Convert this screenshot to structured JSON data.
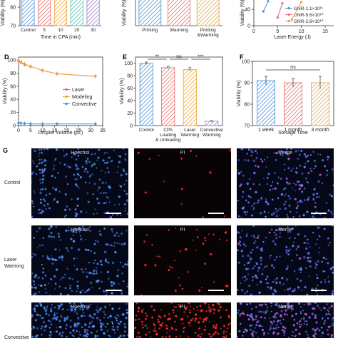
{
  "panels": {
    "d": "D",
    "e": "E",
    "f": "F",
    "g": "G"
  },
  "chart_data": [
    {
      "id": "top-a",
      "type": "bar",
      "ylabel": "Viability (%)",
      "xlabel": "Time in CPA (min)",
      "categories": [
        "Control",
        "5",
        "10",
        "20",
        "30"
      ],
      "yticks": [
        70,
        80
      ],
      "ylim": [
        70,
        86
      ],
      "values": [
        88,
        88,
        88,
        88,
        88
      ],
      "colors": [
        "#4a90d9",
        "#e76a6a",
        "#e6a640",
        "#5bc0a8",
        "#9c7ec6"
      ]
    },
    {
      "id": "top-b",
      "type": "bar",
      "ylabel": "Viability (%)",
      "xlabel": "",
      "categories": [
        "Printing",
        "Warming",
        "Printing &Warming"
      ],
      "values": [
        88,
        88,
        88
      ],
      "colors": [
        "#4a90d9",
        "#e76a6a",
        "#e6a640"
      ]
    },
    {
      "id": "top-c",
      "type": "line",
      "ylabel": "Viability (%)",
      "xlabel": "Laser Energy (J)",
      "xticks": [
        0,
        5,
        10,
        15
      ],
      "yticks": [
        0,
        40
      ],
      "series": [
        {
          "name": "GNR-1.1×10¹¹",
          "color": "#4a90d9",
          "x": [
            2,
            3
          ],
          "y": [
            35,
            60
          ]
        },
        {
          "name": "GNR-5.6×10¹⁰",
          "color": "#e76a6a",
          "x": [
            5,
            6
          ],
          "y": [
            20,
            55
          ]
        },
        {
          "name": "GNR-2.8×10¹⁰",
          "color": "#e6a640",
          "x": [
            8,
            10
          ],
          "y": [
            15,
            58
          ]
        }
      ]
    },
    {
      "id": "D",
      "type": "line",
      "ylabel": "Viability (%)",
      "xlabel": "Droplet Volume (μL)",
      "xlim": [
        0,
        35
      ],
      "ylim": [
        0,
        100
      ],
      "xticks": [
        0,
        5,
        10,
        15,
        20,
        25,
        30,
        35
      ],
      "yticks": [
        0,
        20,
        40,
        60,
        80,
        100
      ],
      "series": [
        {
          "name": "Laser",
          "color": "#e76a6a",
          "x": [
            0,
            1,
            2.5,
            5,
            10,
            16,
            32
          ],
          "y": [
            98,
            96,
            93,
            90,
            84,
            79,
            75
          ]
        },
        {
          "name": "Modeling",
          "color": "#e6a640",
          "x": [
            0,
            1,
            2.5,
            5,
            10,
            16,
            32
          ],
          "y": [
            99,
            97,
            94,
            90,
            84,
            79,
            75
          ]
        },
        {
          "name": "Convective",
          "color": "#4a90d9",
          "x": [
            0,
            1,
            2.5,
            5,
            10,
            16,
            32
          ],
          "y": [
            4,
            3.5,
            3,
            2.5,
            2.5,
            2.5,
            2.5
          ]
        }
      ]
    },
    {
      "id": "E",
      "type": "bar",
      "ylabel": "Viability (%)",
      "categories": [
        "Control",
        "CPA Loading & Unloading",
        "Laser Warming",
        "Convective Warming"
      ],
      "values": [
        100,
        93,
        90,
        7
      ],
      "errors": [
        2,
        2,
        3,
        1
      ],
      "ylim": [
        0,
        110
      ],
      "yticks": [
        0,
        20,
        40,
        60,
        80,
        100
      ],
      "colors": [
        "#4a90d9",
        "#e76a6a",
        "#e6a640",
        "#9c7ec6"
      ],
      "significance": [
        {
          "from": 0,
          "to": 1,
          "label": "**"
        },
        {
          "from": 1,
          "to": 2,
          "label": "ns"
        },
        {
          "from": 2,
          "to": 3,
          "label": "***"
        }
      ]
    },
    {
      "id": "F",
      "type": "bar",
      "ylabel": "Viability (%)",
      "xlabel": "Storage Time",
      "categories": [
        "1 week",
        "1 month",
        "3 month"
      ],
      "values": [
        91,
        90,
        90
      ],
      "errors": [
        2,
        2,
        3
      ],
      "ylim": [
        70,
        100
      ],
      "yticks": [
        70,
        80,
        90,
        100
      ],
      "colors": [
        "#4a90d9",
        "#e76a6a",
        "#e6a640"
      ],
      "significance": [
        {
          "from": 0,
          "to": 2,
          "label": "ns"
        }
      ]
    }
  ],
  "micrographs": {
    "columns": [
      "Hoechst",
      "PI",
      "Merge"
    ],
    "rows": [
      "Control",
      "Laser Warming",
      "Convective Warming"
    ],
    "row_labels_visible": [
      "Control",
      "Laser\nWarming",
      "Convective"
    ]
  }
}
